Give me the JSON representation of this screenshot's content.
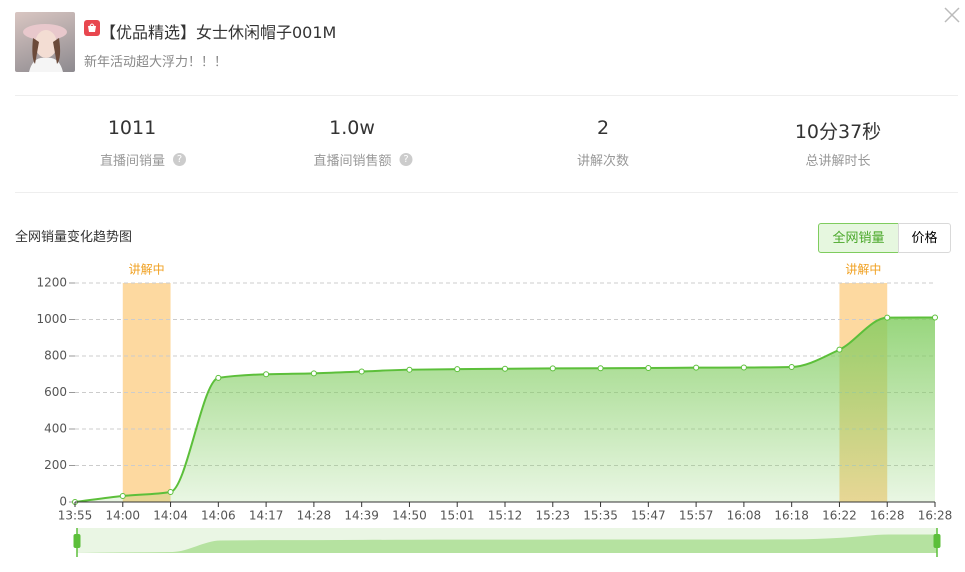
{
  "header": {
    "title": "【优品精选】女士休闲帽子001M",
    "subtitle": "新年活动超大浮力！！！"
  },
  "stats": [
    {
      "value": "1011",
      "label": "直播间销量"
    },
    {
      "value": "1.0w",
      "label": "直播间销售额"
    },
    {
      "value": "2",
      "label": "讲解次数"
    },
    {
      "value": "10分37秒",
      "label": "总讲解时长"
    }
  ],
  "tabs": [
    {
      "label": "全网销量",
      "active": true
    },
    {
      "label": "价格",
      "active": false
    }
  ],
  "chart_data": {
    "type": "area",
    "title": "全网销量变化趋势图",
    "categories": [
      "13:55",
      "14:00",
      "14:04",
      "14:06",
      "14:17",
      "14:28",
      "14:39",
      "14:50",
      "15:01",
      "15:12",
      "15:23",
      "15:35",
      "15:47",
      "15:57",
      "16:08",
      "16:18",
      "16:22",
      "16:28",
      "16:28"
    ],
    "values": [
      0,
      33,
      55,
      680,
      700,
      705,
      715,
      725,
      728,
      730,
      732,
      733,
      734,
      736,
      737,
      740,
      835,
      1010,
      1011
    ],
    "color": "#5cbf3a",
    "highlights": [
      {
        "label": "讲解中",
        "from": "14:00",
        "to": "14:04"
      },
      {
        "label": "讲解中",
        "from": "16:22",
        "to": "16:28"
      }
    ],
    "highlight_color": "#fdd9a0",
    "ylim": [
      0,
      1200
    ],
    "yticks": [
      0,
      200,
      400,
      600,
      800,
      1000,
      1200
    ],
    "grid": true
  }
}
